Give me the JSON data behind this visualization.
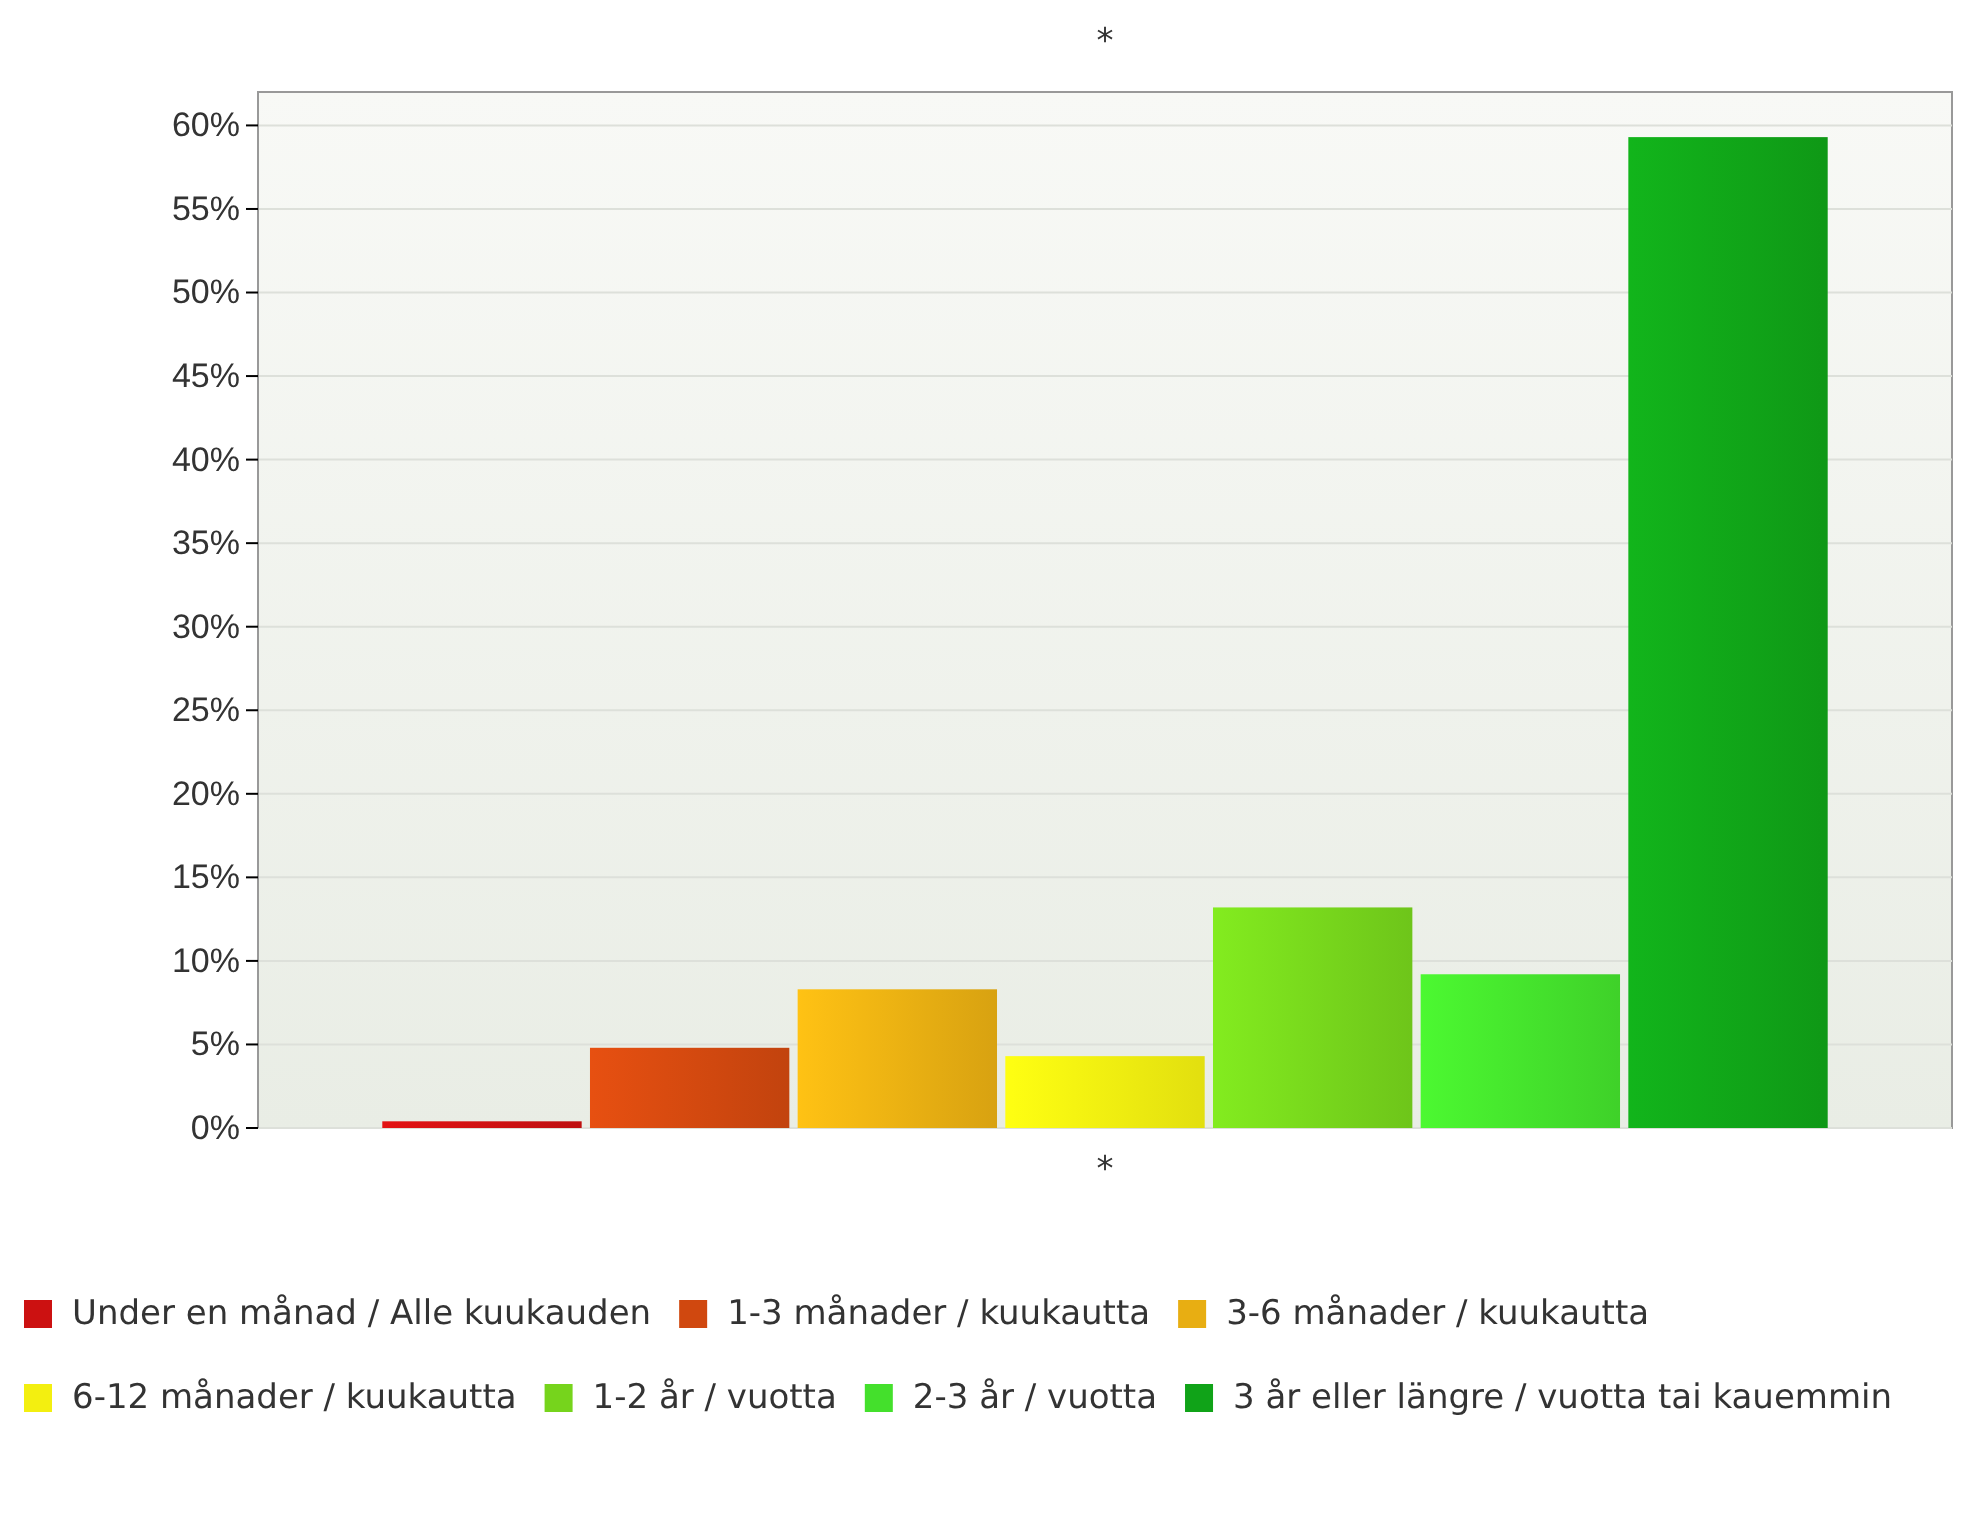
{
  "chart_data": {
    "type": "bar",
    "title": "*",
    "categories": [
      "*"
    ],
    "series": [
      {
        "name": "Under en månad / Alle kuukauden",
        "color": "#cc1111",
        "values": [
          0.4
        ]
      },
      {
        "name": "1-3 månader / kuukautta",
        "color": "#d0480f",
        "values": [
          4.8
        ]
      },
      {
        "name": "3-6 månader / kuukautta",
        "color": "#e8ae12",
        "values": [
          8.3
        ]
      },
      {
        "name": "6-12 månader / kuukautta",
        "color": "#f3ef10",
        "values": [
          4.3
        ]
      },
      {
        "name": "1-2 år / vuotta",
        "color": "#76d41c",
        "values": [
          13.2
        ]
      },
      {
        "name": "2-3 år / vuotta",
        "color": "#44e02c",
        "values": [
          9.2
        ]
      },
      {
        "name": "3 år eller längre / vuotta tai kauemmin",
        "color": "#10a318",
        "values": [
          59.3
        ]
      }
    ],
    "ylim": [
      0,
      62
    ],
    "yticks": [
      {
        "value": 0,
        "label": "0%"
      },
      {
        "value": 5,
        "label": "5%"
      },
      {
        "value": 10,
        "label": "10%"
      },
      {
        "value": 15,
        "label": "15%"
      },
      {
        "value": 20,
        "label": "20%"
      },
      {
        "value": 25,
        "label": "25%"
      },
      {
        "value": 30,
        "label": "30%"
      },
      {
        "value": 35,
        "label": "35%"
      },
      {
        "value": 40,
        "label": "40%"
      },
      {
        "value": 45,
        "label": "45%"
      },
      {
        "value": 50,
        "label": "50%"
      },
      {
        "value": 55,
        "label": "55%"
      },
      {
        "value": 60,
        "label": "60%"
      }
    ],
    "grid": "y",
    "legend": "bottom"
  }
}
